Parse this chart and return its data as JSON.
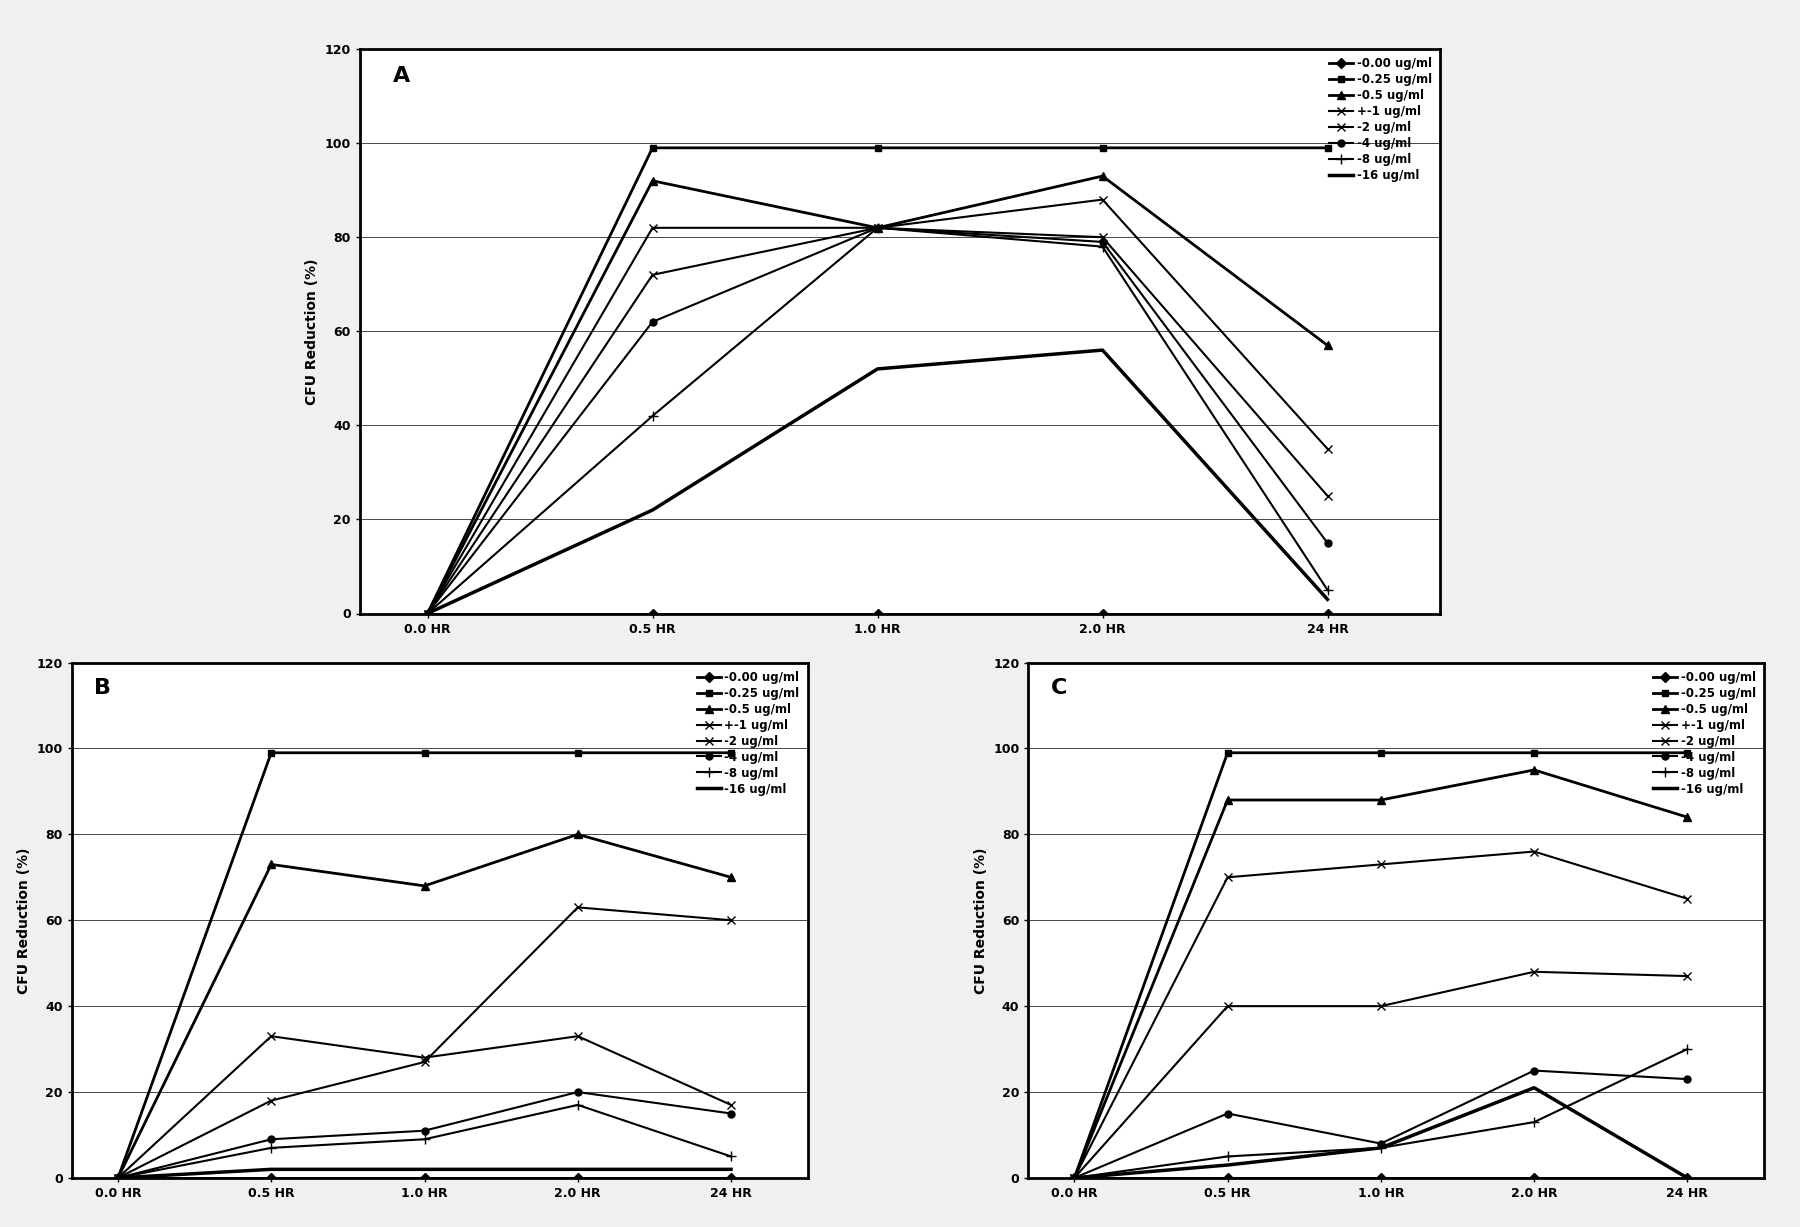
{
  "x_ticks": [
    "0.0 HR",
    "0.5 HR",
    "1.0 HR",
    "2.0 HR",
    "24 HR"
  ],
  "x_vals": [
    0,
    1,
    2,
    3,
    4
  ],
  "legend_labels": [
    "-0.00 ug/ml",
    "-0.25 ug/ml",
    "-0.5 ug/ml",
    "+-1 ug/ml",
    "-2 ug/ml",
    "-4 ug/ml",
    "-8 ug/ml",
    "-16 ug/ml"
  ],
  "ylabel": "CFU Reduction (%)",
  "ylim": [
    0,
    120
  ],
  "yticks": [
    0,
    20,
    40,
    60,
    80,
    100,
    120
  ],
  "chart_A": {
    "label": "A",
    "series": [
      [
        0,
        0,
        0,
        0,
        0
      ],
      [
        0,
        99,
        99,
        99,
        99
      ],
      [
        0,
        92,
        82,
        93,
        57
      ],
      [
        0,
        82,
        82,
        88,
        35
      ],
      [
        0,
        72,
        82,
        80,
        25
      ],
      [
        0,
        62,
        82,
        79,
        15
      ],
      [
        0,
        42,
        82,
        78,
        5
      ],
      [
        0,
        22,
        52,
        56,
        3
      ]
    ]
  },
  "chart_B": {
    "label": "B",
    "series": [
      [
        0,
        0,
        0,
        0,
        0
      ],
      [
        0,
        99,
        99,
        99,
        99
      ],
      [
        0,
        73,
        68,
        80,
        70
      ],
      [
        0,
        33,
        28,
        33,
        17
      ],
      [
        0,
        18,
        27,
        63,
        60
      ],
      [
        0,
        9,
        11,
        20,
        15
      ],
      [
        0,
        7,
        9,
        17,
        5
      ],
      [
        0,
        2,
        2,
        2,
        2
      ]
    ]
  },
  "chart_C": {
    "label": "C",
    "series": [
      [
        0,
        0,
        0,
        0,
        0
      ],
      [
        0,
        99,
        99,
        99,
        99
      ],
      [
        0,
        88,
        88,
        95,
        84
      ],
      [
        0,
        70,
        73,
        76,
        65
      ],
      [
        0,
        40,
        40,
        48,
        47
      ],
      [
        0,
        15,
        8,
        25,
        23
      ],
      [
        0,
        5,
        7,
        13,
        30
      ],
      [
        0,
        3,
        7,
        21,
        0
      ]
    ]
  },
  "line_styles": [
    {
      "color": "#000000",
      "lw": 2.0,
      "marker": "D",
      "ms": 5,
      "ls": "-"
    },
    {
      "color": "#000000",
      "lw": 2.0,
      "marker": "s",
      "ms": 5,
      "ls": "-"
    },
    {
      "color": "#000000",
      "lw": 2.0,
      "marker": "^",
      "ms": 6,
      "ls": "-"
    },
    {
      "color": "#000000",
      "lw": 1.5,
      "marker": "x",
      "ms": 6,
      "ls": "-"
    },
    {
      "color": "#000000",
      "lw": 1.5,
      "marker": "x",
      "ms": 6,
      "ls": "-"
    },
    {
      "color": "#000000",
      "lw": 1.5,
      "marker": "o",
      "ms": 5,
      "ls": "-"
    },
    {
      "color": "#000000",
      "lw": 1.5,
      "marker": "+",
      "ms": 7,
      "ls": "-"
    },
    {
      "color": "#000000",
      "lw": 2.5,
      "marker": "None",
      "ms": 0,
      "ls": "-"
    }
  ],
  "bg_color": "#f0f0f0",
  "panel_bg": "#ffffff",
  "grid_color": "#000000",
  "grid_lw": 0.5,
  "legend_fontsize": 8.5,
  "tick_fontsize": 9,
  "ylabel_fontsize": 10,
  "panel_label_fontsize": 16
}
